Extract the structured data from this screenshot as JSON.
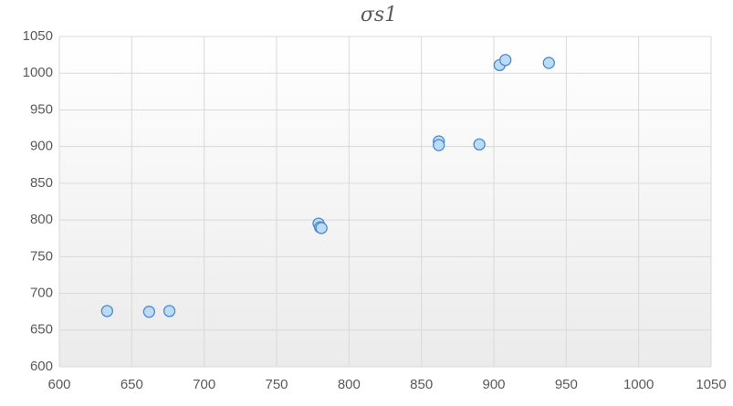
{
  "chart_data": {
    "type": "scatter",
    "title": "σs1",
    "series": [
      {
        "color": "#bcdcf5",
        "x": [
          633,
          662,
          676,
          779,
          780,
          781,
          862,
          862,
          890,
          904,
          908,
          938
        ],
        "values": [
          676,
          675,
          676,
          795,
          790,
          789,
          907,
          902,
          903,
          1011,
          1018,
          1014
        ]
      }
    ],
    "xlim": [
      600,
      1050
    ],
    "xticks": [
      600,
      650,
      700,
      750,
      800,
      850,
      900,
      950,
      1000,
      1050
    ],
    "ylim": [
      600,
      1050
    ],
    "yticks": [
      600,
      650,
      700,
      750,
      800,
      850,
      900,
      950,
      1000,
      1050
    ],
    "grid": true
  }
}
